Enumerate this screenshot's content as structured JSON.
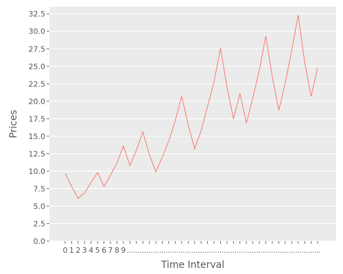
{
  "chart_data": {
    "type": "line",
    "title": "",
    "xlabel": "Time Interval",
    "ylabel": "Prices",
    "ylim": [
      0,
      33.5
    ],
    "yticks": [
      0.0,
      2.5,
      5.0,
      7.5,
      10.0,
      12.5,
      15.0,
      17.5,
      20.0,
      22.5,
      25.0,
      27.5,
      30.0,
      32.5
    ],
    "ytick_labels": [
      "0.0",
      "2.5",
      "5.0",
      "7.5",
      "10.0",
      "12.5",
      "15.0",
      "17.5",
      "20.0",
      "22.5",
      "25.0",
      "27.5",
      "30.0",
      "32.5"
    ],
    "x_tick_labels": [
      "0",
      "1",
      "2",
      "3",
      "4",
      "5",
      "6",
      "7",
      "8",
      "9",
      "...",
      "...",
      "...",
      "...",
      "...",
      "...",
      "...",
      "...",
      "...",
      "...",
      "...",
      "...",
      "...",
      "...",
      "...",
      "...",
      "...",
      "...",
      "...",
      "...",
      "...",
      "...",
      "...",
      "...",
      "...",
      "...",
      "...",
      "...",
      "...",
      "..."
    ],
    "grid": true,
    "legend": "none",
    "series": [
      {
        "values": [
          9.7,
          7.8,
          6.1,
          6.9,
          8.4,
          9.8,
          7.8,
          9.4,
          11.2,
          13.6,
          10.8,
          13.0,
          15.6,
          12.4,
          9.9,
          12.0,
          14.3,
          17.2,
          20.7,
          16.7,
          13.2,
          15.8,
          19.3,
          22.8,
          27.6,
          22.0,
          17.5,
          21.1,
          16.9,
          20.5,
          24.5,
          29.3,
          23.5,
          18.7,
          22.6,
          27.3,
          32.3,
          25.6,
          20.7,
          24.8
        ],
        "color": "#f8766d"
      }
    ]
  }
}
